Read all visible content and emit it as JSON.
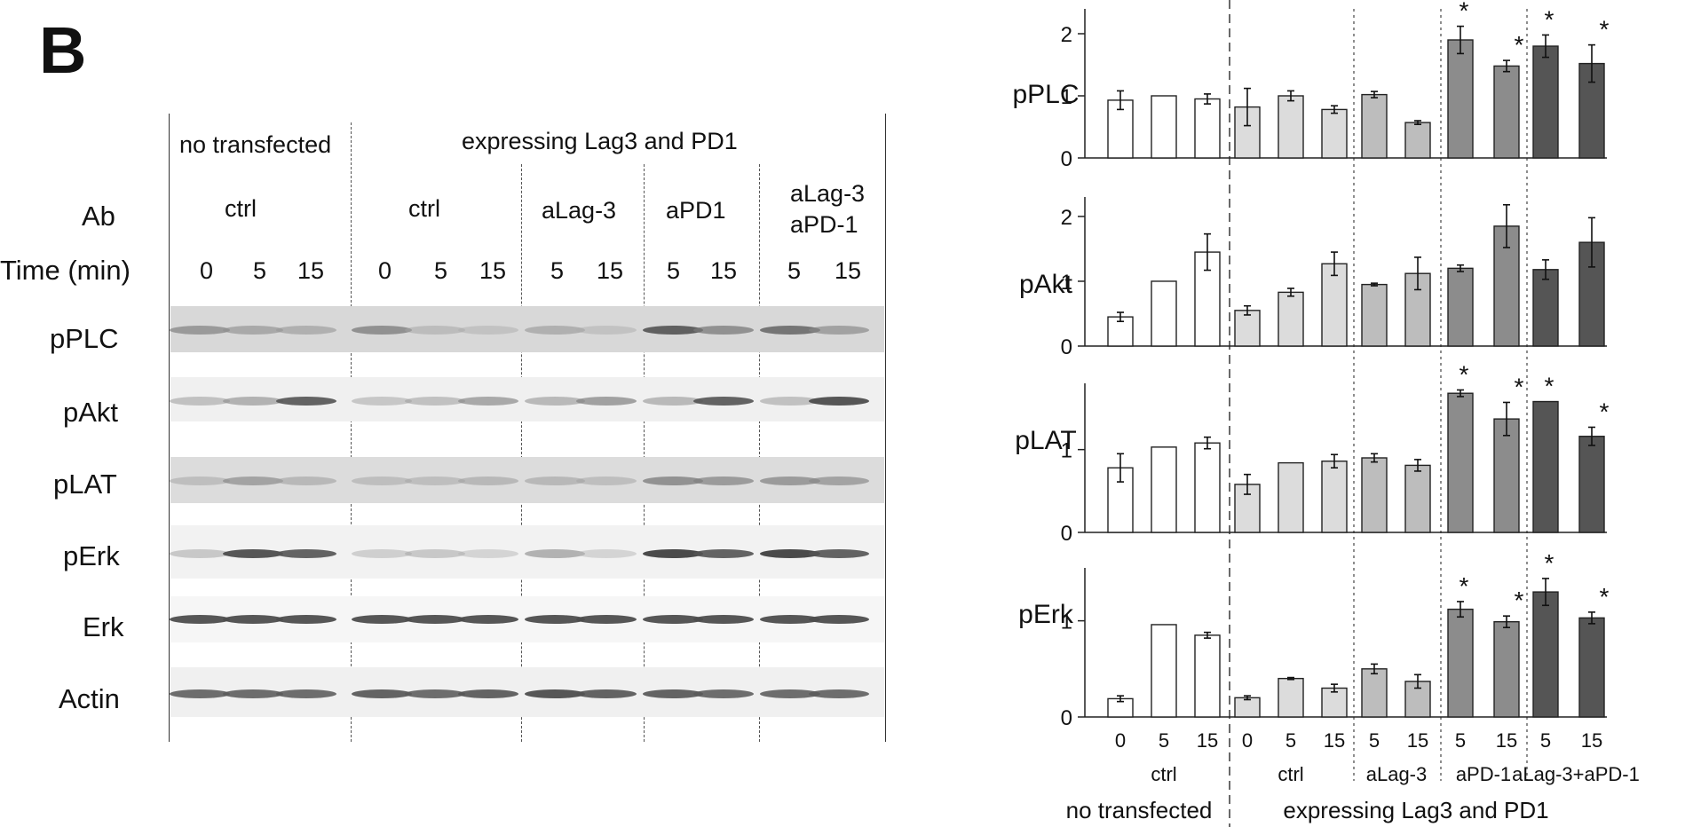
{
  "panel_letter": "B",
  "blot": {
    "header_groups": [
      "no transfected",
      "expressing Lag3 and PD1"
    ],
    "ab_row_label": "Ab",
    "time_row_label": "Time (min)",
    "ab_labels": [
      "ctrl",
      "ctrl",
      "aLag-3",
      "aPD1",
      "aLag-3",
      "aPD-1"
    ],
    "time_labels": [
      "0",
      "5",
      "15",
      "0",
      "5",
      "15",
      "5",
      "15",
      "5",
      "15",
      "5",
      "15"
    ],
    "rows": [
      "pPLC",
      "pAkt",
      "pLAT",
      "pErk",
      "Erk",
      "Actin"
    ]
  },
  "chart_data": {
    "type": "bar",
    "categories": [
      "0",
      "5",
      "15",
      "0",
      "5",
      "15",
      "5",
      "15",
      "5",
      "15",
      "5",
      "15"
    ],
    "group_labels": [
      "ctrl",
      "ctrl",
      "aLag-3",
      "aPD-1",
      "aLag-3+aPD-1"
    ],
    "super_group_labels": [
      "no transfected",
      "expressing Lag3 and PD1"
    ],
    "bar_colors": [
      "#ffffff",
      "#ffffff",
      "#ffffff",
      "#dcdcdc",
      "#dcdcdc",
      "#dcdcdc",
      "#bdbdbd",
      "#bdbdbd",
      "#8c8c8c",
      "#8c8c8c",
      "#555555",
      "#555555"
    ],
    "panels": [
      {
        "ylabel": "pPLC",
        "ylim": [
          0,
          2.4
        ],
        "yticks": [
          "0",
          "1",
          "2"
        ],
        "values": [
          0.93,
          1.0,
          0.95,
          0.82,
          1.0,
          0.78,
          1.02,
          0.57,
          1.9,
          1.48,
          1.8,
          1.52
        ],
        "errors": [
          0.15,
          0.0,
          0.08,
          0.3,
          0.08,
          0.06,
          0.05,
          0.03,
          0.22,
          0.09,
          0.18,
          0.3
        ],
        "stars": [
          "",
          "",
          "",
          "",
          "",
          "",
          "",
          "",
          "*",
          "*",
          "*",
          "*"
        ]
      },
      {
        "ylabel": "pAkt",
        "ylim": [
          0,
          2.3
        ],
        "yticks": [
          "0",
          "1",
          "2"
        ],
        "values": [
          0.45,
          1.0,
          1.45,
          0.55,
          0.83,
          1.27,
          0.95,
          1.12,
          1.2,
          1.85,
          1.18,
          1.6
        ],
        "errors": [
          0.07,
          0.0,
          0.28,
          0.07,
          0.06,
          0.18,
          0.02,
          0.25,
          0.05,
          0.33,
          0.15,
          0.38
        ],
        "stars": [
          "",
          "",
          "",
          "",
          "",
          "",
          "",
          "",
          "",
          "",
          "",
          ""
        ]
      },
      {
        "ylabel": "pLAT",
        "ylim": [
          0,
          1.8
        ],
        "yticks": [
          "0",
          "1"
        ],
        "values": [
          0.78,
          1.03,
          1.08,
          0.58,
          0.84,
          0.86,
          0.9,
          0.81,
          1.68,
          1.37,
          1.58,
          1.16
        ],
        "errors": [
          0.17,
          0.0,
          0.07,
          0.12,
          0.0,
          0.08,
          0.05,
          0.07,
          0.04,
          0.2,
          0.0,
          0.11
        ],
        "stars": [
          "",
          "",
          "",
          "",
          "",
          "",
          "",
          "",
          "*",
          "*",
          "*",
          "*"
        ]
      },
      {
        "ylabel": "pErk",
        "ylim": [
          0,
          1.55
        ],
        "yticks": [
          "0",
          "1"
        ],
        "values": [
          0.19,
          0.96,
          0.85,
          0.2,
          0.4,
          0.3,
          0.5,
          0.37,
          1.12,
          0.99,
          1.3,
          1.03
        ],
        "errors": [
          0.03,
          0.0,
          0.03,
          0.02,
          0.01,
          0.04,
          0.05,
          0.07,
          0.08,
          0.06,
          0.14,
          0.06
        ],
        "stars": [
          "",
          "",
          "",
          "",
          "",
          "",
          "",
          "",
          "*",
          "*",
          "*",
          "*"
        ]
      }
    ]
  }
}
